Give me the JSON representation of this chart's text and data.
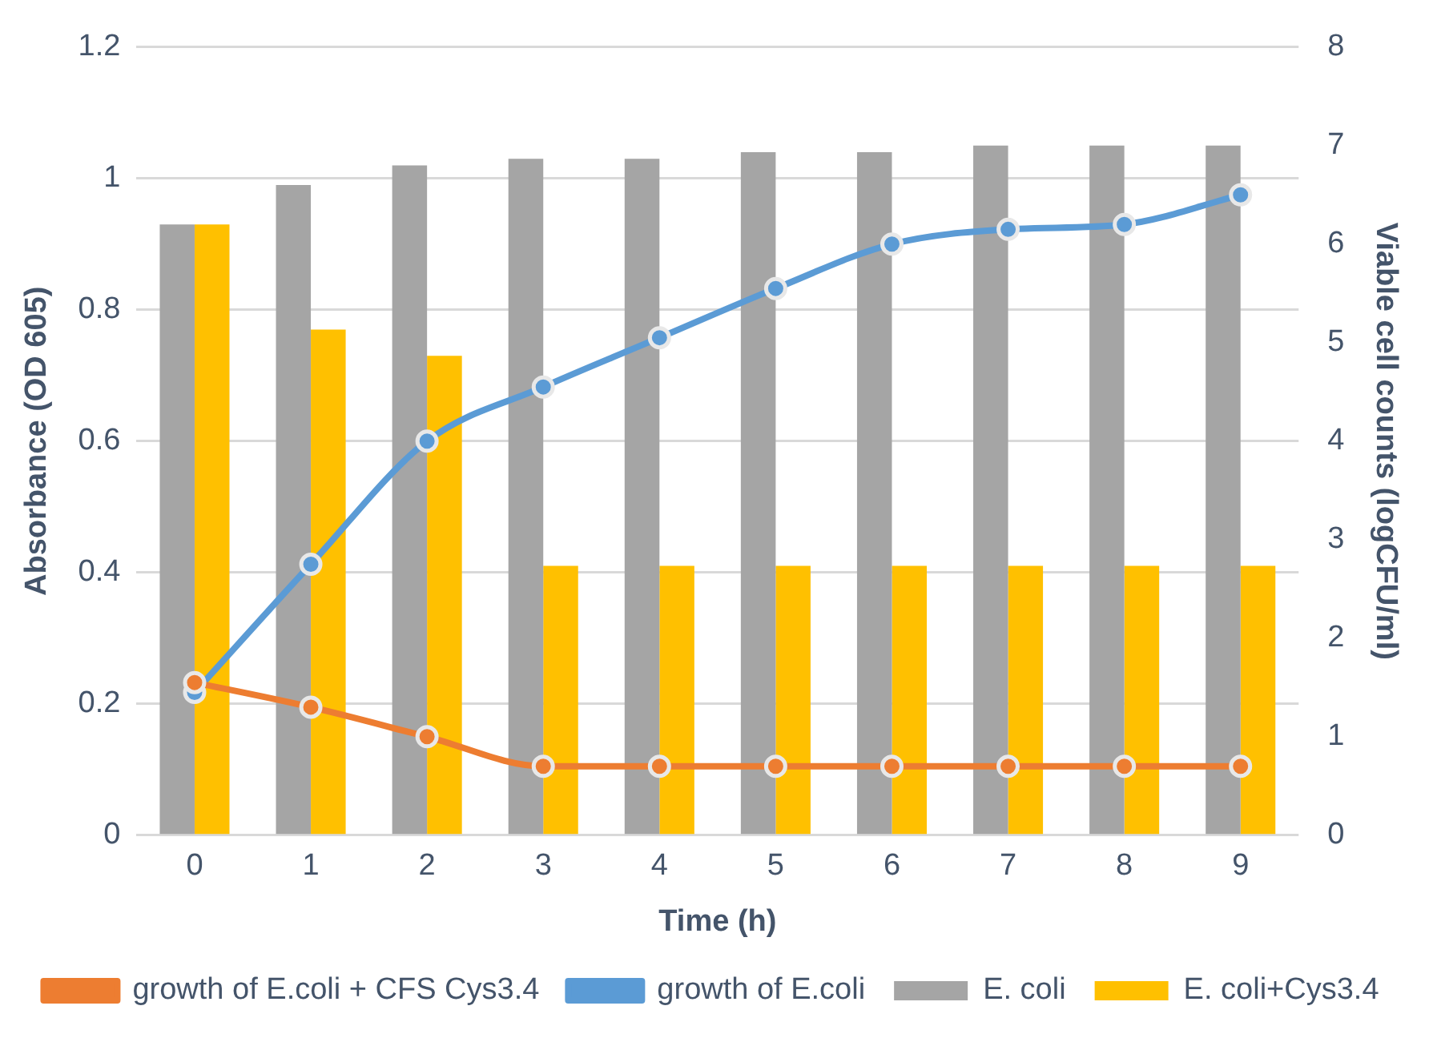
{
  "chart_data": {
    "type": "bar",
    "xlabel": "Time (h)",
    "ylabel": "Absorbance (OD 605)",
    "y2label": "Viable cell counts (logCFU/ml)",
    "categories": [
      "0",
      "1",
      "2",
      "3",
      "4",
      "5",
      "6",
      "7",
      "8",
      "9"
    ],
    "series": [
      {
        "name": "E. coli",
        "color": "#a5a5a5",
        "values": [
          0.93,
          0.99,
          1.02,
          1.03,
          1.03,
          1.04,
          1.04,
          1.05,
          1.05,
          1.05
        ]
      },
      {
        "name": "E. coli+Cys3.4",
        "color": "#ffc000",
        "values": [
          0.93,
          0.77,
          0.73,
          0.41,
          0.41,
          0.41,
          0.41,
          0.41,
          0.41,
          0.41
        ]
      },
      {
        "name": "growth of E.coli",
        "type": "line",
        "axis": "y2",
        "color": "#5b9bd5",
        "values": [
          1.45,
          2.75,
          4.0,
          4.55,
          5.05,
          5.55,
          6.0,
          6.15,
          6.2,
          6.5
        ]
      },
      {
        "name": "growth of E.coli + CFS Cys3.4",
        "type": "line",
        "axis": "y2",
        "color": "#ed7d31",
        "values": [
          1.55,
          1.3,
          1.0,
          0.7,
          0.7,
          0.7,
          0.7,
          0.7,
          0.7,
          0.7
        ]
      }
    ],
    "ylim": [
      0,
      1.2
    ],
    "yticks": [
      0,
      0.2,
      0.4,
      0.6,
      0.8,
      1,
      1.2
    ],
    "y2lim": [
      0,
      8
    ],
    "y2ticks": [
      0,
      1,
      2,
      3,
      4,
      5,
      6,
      7,
      8
    ],
    "grid": "y",
    "legend": "bottom",
    "marker": "circle"
  }
}
